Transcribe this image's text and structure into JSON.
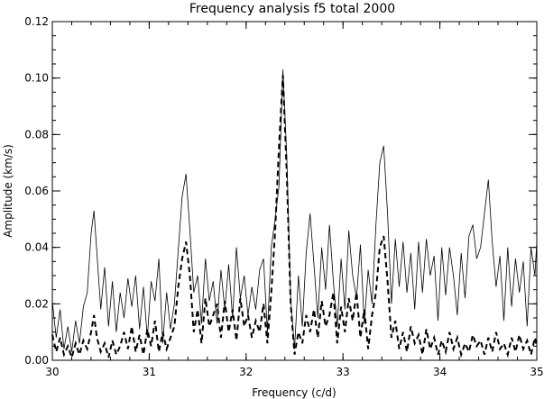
{
  "chart_data": {
    "type": "line",
    "title": "Frequency analysis f5 total 2000",
    "xlabel": "Frequency (c/d)",
    "ylabel": "Amplitude (km/s)",
    "xlim": [
      30,
      35
    ],
    "ylim": [
      0,
      0.12
    ],
    "xticks": [
      "30",
      "31",
      "32",
      "33",
      "34",
      "35"
    ],
    "yticks": [
      "0.00",
      "0.02",
      "0.04",
      "0.06",
      "0.08",
      "0.10",
      "0.12"
    ],
    "grid": false,
    "series": [
      {
        "style": "solid",
        "x": [
          30.0,
          30.04,
          30.08,
          30.12,
          30.16,
          30.2,
          30.24,
          30.28,
          30.32,
          30.36,
          30.4,
          30.43,
          30.46,
          30.5,
          30.54,
          30.58,
          30.62,
          30.66,
          30.7,
          30.74,
          30.78,
          30.82,
          30.86,
          30.9,
          30.94,
          30.98,
          31.02,
          31.06,
          31.1,
          31.14,
          31.18,
          31.22,
          31.26,
          31.3,
          31.34,
          31.38,
          31.42,
          31.46,
          31.5,
          31.54,
          31.58,
          31.62,
          31.66,
          31.7,
          31.74,
          31.78,
          31.82,
          31.86,
          31.9,
          31.94,
          31.98,
          32.02,
          32.06,
          32.1,
          32.14,
          32.18,
          32.22,
          32.26,
          32.3,
          32.34,
          32.38,
          32.42,
          32.46,
          32.5,
          32.54,
          32.58,
          32.62,
          32.66,
          32.7,
          32.74,
          32.78,
          32.82,
          32.86,
          32.9,
          32.94,
          32.98,
          33.02,
          33.06,
          33.1,
          33.14,
          33.18,
          33.22,
          33.26,
          33.3,
          33.34,
          33.38,
          33.42,
          33.46,
          33.5,
          33.54,
          33.58,
          33.62,
          33.66,
          33.7,
          33.74,
          33.78,
          33.82,
          33.86,
          33.9,
          33.94,
          33.98,
          34.02,
          34.06,
          34.1,
          34.14,
          34.18,
          34.22,
          34.26,
          34.3,
          34.34,
          34.38,
          34.42,
          34.46,
          34.5,
          34.54,
          34.58,
          34.62,
          34.66,
          34.7,
          34.74,
          34.78,
          34.82,
          34.86,
          34.9,
          34.94,
          34.98,
          35.0
        ],
        "y": [
          0.021,
          0.008,
          0.018,
          0.004,
          0.012,
          0.003,
          0.014,
          0.006,
          0.019,
          0.024,
          0.045,
          0.053,
          0.038,
          0.018,
          0.033,
          0.012,
          0.028,
          0.01,
          0.024,
          0.015,
          0.029,
          0.019,
          0.03,
          0.011,
          0.026,
          0.008,
          0.028,
          0.021,
          0.036,
          0.006,
          0.024,
          0.011,
          0.02,
          0.039,
          0.058,
          0.066,
          0.046,
          0.024,
          0.03,
          0.013,
          0.036,
          0.021,
          0.028,
          0.013,
          0.032,
          0.018,
          0.034,
          0.015,
          0.04,
          0.022,
          0.03,
          0.016,
          0.026,
          0.018,
          0.032,
          0.036,
          0.01,
          0.04,
          0.05,
          0.062,
          0.103,
          0.072,
          0.022,
          0.004,
          0.03,
          0.012,
          0.038,
          0.052,
          0.034,
          0.015,
          0.04,
          0.025,
          0.048,
          0.028,
          0.012,
          0.036,
          0.018,
          0.046,
          0.03,
          0.022,
          0.041,
          0.013,
          0.032,
          0.02,
          0.048,
          0.07,
          0.076,
          0.052,
          0.02,
          0.043,
          0.026,
          0.042,
          0.024,
          0.038,
          0.018,
          0.042,
          0.024,
          0.043,
          0.03,
          0.037,
          0.014,
          0.04,
          0.023,
          0.04,
          0.03,
          0.016,
          0.038,
          0.022,
          0.044,
          0.048,
          0.036,
          0.04,
          0.052,
          0.064,
          0.042,
          0.026,
          0.037,
          0.014,
          0.04,
          0.019,
          0.036,
          0.024,
          0.035,
          0.012,
          0.04,
          0.03,
          0.042
        ]
      },
      {
        "style": "dashed",
        "x": [
          30.0,
          30.04,
          30.08,
          30.12,
          30.16,
          30.2,
          30.24,
          30.28,
          30.32,
          30.36,
          30.4,
          30.43,
          30.46,
          30.5,
          30.54,
          30.58,
          30.62,
          30.66,
          30.7,
          30.74,
          30.78,
          30.82,
          30.86,
          30.9,
          30.94,
          30.98,
          31.02,
          31.06,
          31.1,
          31.14,
          31.18,
          31.22,
          31.26,
          31.3,
          31.34,
          31.38,
          31.42,
          31.46,
          31.5,
          31.54,
          31.58,
          31.62,
          31.66,
          31.7,
          31.74,
          31.78,
          31.82,
          31.86,
          31.9,
          31.94,
          31.98,
          32.02,
          32.06,
          32.1,
          32.14,
          32.18,
          32.22,
          32.26,
          32.3,
          32.34,
          32.38,
          32.42,
          32.46,
          32.5,
          32.54,
          32.58,
          32.62,
          32.66,
          32.7,
          32.74,
          32.78,
          32.82,
          32.86,
          32.9,
          32.94,
          32.98,
          33.02,
          33.06,
          33.1,
          33.14,
          33.18,
          33.22,
          33.26,
          33.3,
          33.34,
          33.38,
          33.42,
          33.46,
          33.5,
          33.54,
          33.58,
          33.62,
          33.66,
          33.7,
          33.74,
          33.78,
          33.82,
          33.86,
          33.9,
          33.94,
          33.98,
          34.02,
          34.06,
          34.1,
          34.14,
          34.18,
          34.22,
          34.26,
          34.3,
          34.34,
          34.38,
          34.42,
          34.46,
          34.5,
          34.54,
          34.58,
          34.62,
          34.66,
          34.7,
          34.74,
          34.78,
          34.82,
          34.86,
          34.9,
          34.94,
          34.98,
          35.0
        ],
        "y": [
          0.009,
          0.003,
          0.008,
          0.002,
          0.005,
          0.001,
          0.006,
          0.002,
          0.007,
          0.004,
          0.01,
          0.016,
          0.008,
          0.003,
          0.006,
          0.001,
          0.007,
          0.002,
          0.005,
          0.01,
          0.004,
          0.012,
          0.003,
          0.009,
          0.002,
          0.011,
          0.005,
          0.014,
          0.003,
          0.01,
          0.004,
          0.008,
          0.012,
          0.026,
          0.036,
          0.042,
          0.03,
          0.01,
          0.018,
          0.006,
          0.022,
          0.012,
          0.016,
          0.02,
          0.008,
          0.021,
          0.01,
          0.018,
          0.007,
          0.022,
          0.012,
          0.016,
          0.008,
          0.014,
          0.01,
          0.02,
          0.006,
          0.024,
          0.046,
          0.076,
          0.101,
          0.066,
          0.02,
          0.002,
          0.01,
          0.006,
          0.016,
          0.01,
          0.018,
          0.008,
          0.021,
          0.012,
          0.016,
          0.024,
          0.006,
          0.019,
          0.01,
          0.022,
          0.014,
          0.024,
          0.008,
          0.018,
          0.004,
          0.016,
          0.024,
          0.04,
          0.044,
          0.028,
          0.008,
          0.014,
          0.004,
          0.01,
          0.003,
          0.012,
          0.006,
          0.009,
          0.002,
          0.011,
          0.004,
          0.008,
          0.002,
          0.007,
          0.003,
          0.01,
          0.004,
          0.008,
          0.002,
          0.006,
          0.003,
          0.009,
          0.005,
          0.007,
          0.002,
          0.008,
          0.003,
          0.01,
          0.004,
          0.006,
          0.002,
          0.008,
          0.003,
          0.009,
          0.004,
          0.007,
          0.002,
          0.008,
          0.005
        ]
      }
    ]
  }
}
